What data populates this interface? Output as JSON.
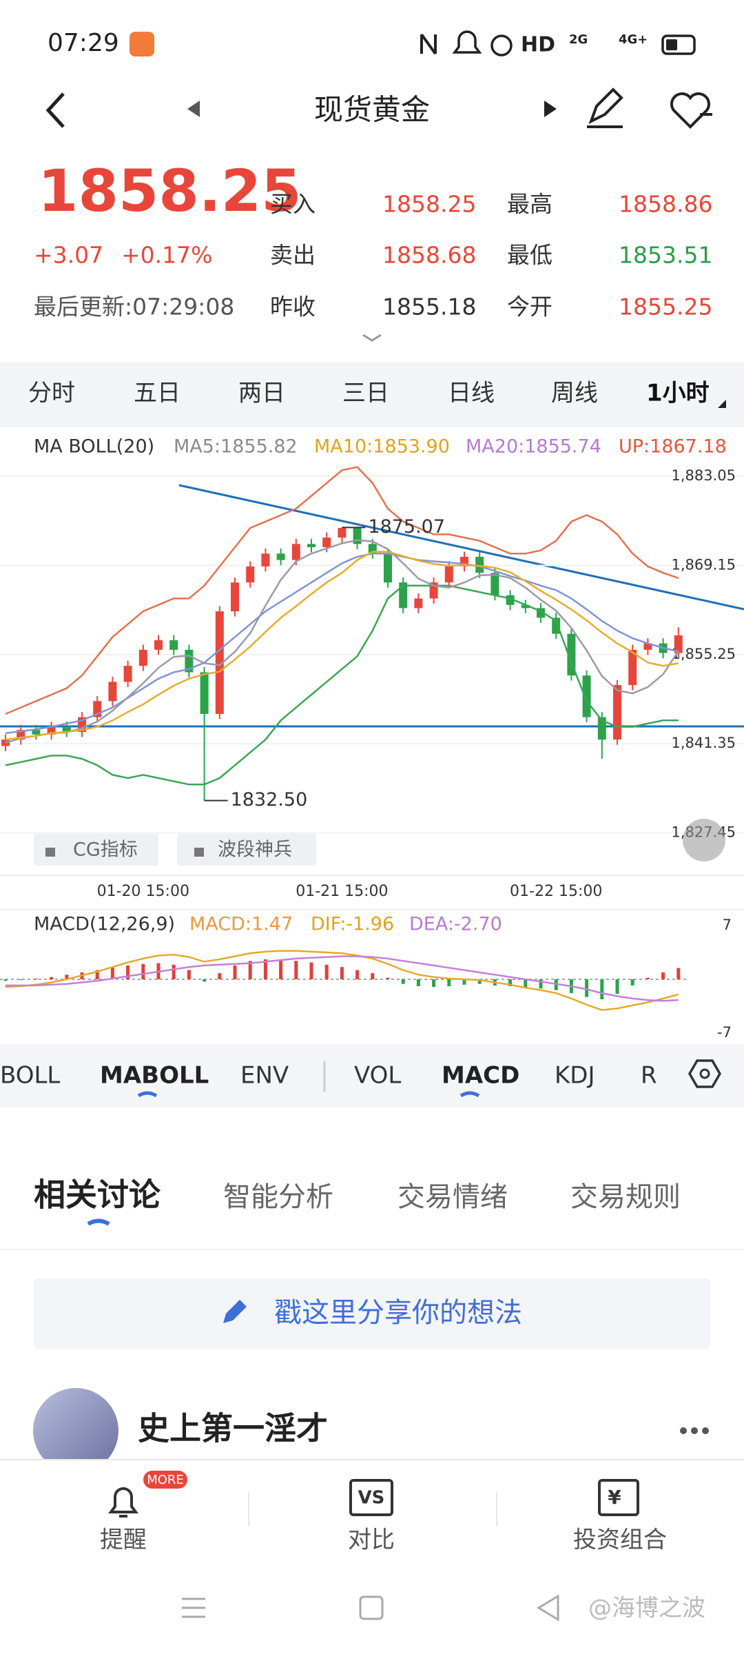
{
  "status_bar": {
    "time": "07:29",
    "network": [
      "HD",
      "2G",
      "4G+"
    ]
  },
  "header": {
    "title": "现货黄金"
  },
  "quote": {
    "price": 1858.25,
    "change": "+3.07",
    "change_pct": "+0.17%",
    "updated": "最后更新:07:29:08",
    "fields": [
      {
        "label": "买入",
        "value": 1858.25
      },
      {
        "label": "卖出",
        "value": 1858.68
      },
      {
        "label": "昨收",
        "value": 1855.18
      },
      {
        "label": "最高",
        "value": 1858.86
      },
      {
        "label": "最低",
        "value": 1853.51
      },
      {
        "label": "今开",
        "value": 1855.25
      }
    ]
  },
  "period_tabs": [
    "分时",
    "五日",
    "两日",
    "三日",
    "日线",
    "周线",
    "1小时"
  ],
  "buttons": [
    "CG指标",
    "波段神兵"
  ],
  "indicator_tabs": [
    "BOLL",
    "MABOLL",
    "ENV",
    "VOL",
    "MACD",
    "KDJ",
    "R"
  ],
  "discussion_tabs": [
    "相关讨论",
    "智能分析",
    "交易情绪",
    "交易规则"
  ],
  "composer": "戳这里分享你的想法",
  "post": {
    "author": "史上第一淫才"
  },
  "bottom_nav": {
    "badge": "MORE",
    "items": [
      "提醒",
      "对比",
      "投资组合"
    ],
    "icon_texts": [
      "VS",
      "¥"
    ]
  },
  "watermark": "@海博之波",
  "chart_data": [
    {
      "type": "candlestick",
      "legend": [
        {
          "text": "MA BOLL(20)",
          "color": "#333333"
        },
        {
          "text": "MA5:1855.82",
          "color": "#8a8a8a"
        },
        {
          "text": "MA10:1853.90",
          "color": "#e0a21e"
        },
        {
          "text": "MA20:1855.74",
          "color": "#b57ad0"
        },
        {
          "text": "UP:1867.18",
          "color": "#e5553e"
        }
      ],
      "categories": [
        null,
        null,
        null,
        null,
        null,
        null,
        null,
        null,
        null,
        "01-20 15:00",
        null,
        null,
        null,
        null,
        null,
        null,
        null,
        null,
        null,
        null,
        null,
        null,
        "01-21 15:00",
        null,
        null,
        null,
        null,
        null,
        null,
        null,
        null,
        null,
        null,
        null,
        null,
        null,
        "01-22 15:00",
        null,
        null,
        null,
        null,
        null,
        null,
        null,
        null
      ],
      "open": [
        1841.0,
        1842.0,
        1843.5,
        1842.8,
        1844.0,
        1843.2,
        1845.5,
        1848.0,
        1851.0,
        1853.5,
        1856.0,
        1857.5,
        1856.0,
        1852.5,
        1846.0,
        1862.0,
        1866.5,
        1869.0,
        1871.0,
        1870.0,
        1872.5,
        1872.0,
        1873.5,
        1875.0,
        1872.5,
        1871.0,
        1866.5,
        1862.5,
        1864.0,
        1866.5,
        1869.0,
        1870.5,
        1868.0,
        1864.5,
        1863.0,
        1862.5,
        1861.0,
        1858.5,
        1852.0,
        1845.5,
        1842.0,
        1850.5,
        1856.0,
        1857.0,
        1855.5
      ],
      "high": [
        1842.8,
        1844.3,
        1844.3,
        1844.8,
        1844.8,
        1846.3,
        1848.8,
        1851.8,
        1854.3,
        1856.8,
        1858.3,
        1858.3,
        1856.8,
        1853.3,
        1862.8,
        1867.3,
        1869.8,
        1871.8,
        1871.8,
        1873.3,
        1873.3,
        1874.3,
        1875.07,
        1874.6,
        1873.3,
        1871.8,
        1867.3,
        1864.8,
        1867.3,
        1869.8,
        1871.3,
        1871.3,
        1868.8,
        1865.3,
        1863.8,
        1863.3,
        1861.8,
        1859.3,
        1852.8,
        1846.3,
        1851.3,
        1856.8,
        1857.8,
        1857.8,
        1859.5
      ],
      "low": [
        1840.2,
        1841.2,
        1842.0,
        1842.0,
        1842.4,
        1842.4,
        1844.7,
        1847.2,
        1850.2,
        1852.7,
        1855.2,
        1855.2,
        1851.7,
        1832.5,
        1845.2,
        1861.2,
        1865.7,
        1868.2,
        1869.2,
        1869.2,
        1871.2,
        1871.2,
        1872.7,
        1871.7,
        1870.2,
        1865.7,
        1861.7,
        1861.7,
        1863.2,
        1865.7,
        1868.2,
        1867.2,
        1863.7,
        1862.2,
        1861.7,
        1860.2,
        1857.7,
        1851.2,
        1844.7,
        1839.0,
        1841.2,
        1849.7,
        1855.2,
        1854.7,
        1854.7
      ],
      "close": [
        1842.0,
        1843.5,
        1842.8,
        1844.0,
        1843.2,
        1845.5,
        1848.0,
        1851.0,
        1853.5,
        1856.0,
        1857.5,
        1856.0,
        1852.5,
        1846.0,
        1862.0,
        1866.5,
        1869.0,
        1871.0,
        1870.0,
        1872.5,
        1872.0,
        1873.5,
        1875.0,
        1872.5,
        1871.0,
        1866.5,
        1862.5,
        1864.0,
        1866.5,
        1869.0,
        1870.5,
        1868.0,
        1864.5,
        1863.0,
        1862.5,
        1861.0,
        1858.5,
        1852.0,
        1845.5,
        1842.0,
        1850.5,
        1856.0,
        1857.0,
        1855.5,
        1858.25
      ],
      "up_color": "#e8463a",
      "down_color": "#2ca24a",
      "series": [
        {
          "color": "#e5704f",
          "values": [
            1846,
            1847,
            1848,
            1849,
            1850,
            1852,
            1855,
            1858,
            1860,
            1862,
            1863,
            1864,
            1864,
            1866,
            1869,
            1872,
            1875,
            1876,
            1877,
            1878,
            1880,
            1882,
            1884,
            1884.5,
            1882,
            1878,
            1876,
            1875,
            1874,
            1874,
            1873.5,
            1873,
            1872,
            1871,
            1871,
            1871.5,
            1873,
            1876,
            1877,
            1876,
            1874,
            1871,
            1869,
            1868,
            1867.18
          ]
        },
        {
          "color": "#7f93d8",
          "values": [
            1843,
            1843.3,
            1843.6,
            1844,
            1844.5,
            1845,
            1846,
            1847,
            1848.5,
            1850,
            1851.5,
            1852.5,
            1853,
            1854,
            1856,
            1858,
            1860,
            1862,
            1863.5,
            1865,
            1866.5,
            1868,
            1869.5,
            1870.5,
            1871,
            1871,
            1870.5,
            1870,
            1869.8,
            1869.6,
            1869.4,
            1869,
            1868.3,
            1867.5,
            1866.8,
            1866,
            1865.3,
            1864,
            1862.3,
            1860.5,
            1859,
            1857.8,
            1857,
            1856.3,
            1855.74
          ]
        },
        {
          "color": "#3aa655",
          "values": [
            1838,
            1838.5,
            1839,
            1839.5,
            1839.5,
            1839,
            1838,
            1836.5,
            1836,
            1836.5,
            1836,
            1835.5,
            1835,
            1835,
            1836,
            1838,
            1840,
            1842,
            1845,
            1847,
            1849,
            1851,
            1853,
            1855,
            1859,
            1864,
            1866,
            1866,
            1866,
            1866,
            1865.5,
            1865,
            1864.5,
            1864,
            1863,
            1862,
            1860.5,
            1854,
            1848,
            1845,
            1844,
            1844,
            1844.5,
            1845,
            1845
          ]
        },
        {
          "color": "#9a9aa8",
          "values": [
            1841.5,
            1842.2,
            1842.6,
            1843,
            1843.1,
            1843.8,
            1844.8,
            1846.5,
            1848.6,
            1850.8,
            1853.2,
            1854.9,
            1855.1,
            1853.9,
            1853.6,
            1855.7,
            1858.6,
            1862.9,
            1866.9,
            1869.8,
            1871,
            1871.8,
            1872.6,
            1873.1,
            1872.9,
            1871.7,
            1869.5,
            1867.1,
            1866,
            1865.7,
            1866.5,
            1867.6,
            1867.7,
            1867.2,
            1865.7,
            1863.8,
            1862.1,
            1859.4,
            1855.9,
            1851.9,
            1849.7,
            1849.2,
            1850.2,
            1852.2,
            1855.82
          ]
        },
        {
          "color": "#e6ac2c",
          "values": [
            1842,
            1842.3,
            1842.6,
            1843,
            1843.2,
            1843.5,
            1844,
            1845,
            1846.3,
            1847.5,
            1849,
            1850.4,
            1851.5,
            1852.2,
            1852.6,
            1854.5,
            1856.5,
            1858.8,
            1861,
            1862.8,
            1864.7,
            1866.5,
            1868,
            1870,
            1871.3,
            1871.3,
            1870.6,
            1869.9,
            1869.4,
            1869.1,
            1869.2,
            1869.1,
            1868.8,
            1868.1,
            1866.7,
            1865.2,
            1863.8,
            1862.3,
            1860.6,
            1858.7,
            1857,
            1855.6,
            1854,
            1853.5,
            1853.9
          ]
        }
      ],
      "ylim": [
        1823,
        1885
      ],
      "yticks": [
        {
          "value": 1883.05,
          "label": "1,883.05"
        },
        {
          "value": 1869.15,
          "label": "1,869.15"
        },
        {
          "value": 1855.25,
          "label": "1,855.25"
        },
        {
          "value": 1841.35,
          "label": "1,841.35"
        },
        {
          "value": 1827.45,
          "label": "1,827.45"
        }
      ],
      "grid": true,
      "high_mark": 1875.07,
      "low_mark": {
        "value": 1832.5,
        "label": "1832.50"
      }
    },
    {
      "type": "bar",
      "legend": [
        {
          "text": "MACD(12,26,9)",
          "color": "#333333"
        },
        {
          "text": "MACD:1.47",
          "color": "#e69a3c"
        },
        {
          "text": "DIF:-1.96",
          "color": "#e0a21e"
        },
        {
          "text": "DEA:-2.70",
          "color": "#b57ad0"
        }
      ],
      "values": [
        -0.2,
        -0.1,
        0.1,
        0.3,
        0.6,
        0.9,
        1.2,
        1.5,
        1.8,
        2,
        2.1,
        1.9,
        1.2,
        -0.3,
        0.8,
        1.8,
        2.4,
        2.6,
        2.5,
        2.4,
        2.2,
        1.9,
        1.6,
        1.2,
        0.8,
        0.2,
        -0.6,
        -0.9,
        -1,
        -0.9,
        -0.7,
        -0.6,
        -0.8,
        -0.9,
        -1.1,
        -1.2,
        -1.4,
        -1.8,
        -2.3,
        -2.6,
        -1.9,
        -0.8,
        0.2,
        0.9,
        1.47
      ],
      "up_color": "#e0413a",
      "down_color": "#2ca24a",
      "series": [
        {
          "color": "#e6a92a",
          "values": [
            -1,
            -0.9,
            -0.7,
            -0.4,
            0,
            0.5,
            1,
            1.6,
            2.2,
            2.7,
            3.1,
            3.2,
            2.9,
            2.3,
            2.6,
            3,
            3.4,
            3.6,
            3.7,
            3.7,
            3.6,
            3.5,
            3.4,
            3.1,
            2.7,
            2,
            1.2,
            0.6,
            0.3,
            0.1,
            0,
            -0.1,
            -0.4,
            -0.7,
            -1.1,
            -1.4,
            -1.8,
            -2.5,
            -3.3,
            -4,
            -3.8,
            -3.4,
            -3,
            -2.5,
            -1.96
          ]
        },
        {
          "color": "#c47fd6",
          "values": [
            -0.8,
            -0.8,
            -0.8,
            -0.7,
            -0.6,
            -0.4,
            -0.2,
            0.1,
            0.4,
            0.7,
            1.0,
            1.3,
            1.6,
            1.8,
            1.9,
            2.0,
            2.1,
            2.3,
            2.5,
            2.7,
            2.8,
            2.9,
            3.0,
            3.0,
            2.9,
            2.7,
            2.4,
            2.1,
            1.8,
            1.5,
            1.2,
            0.9,
            0.6,
            0.3,
            0,
            -0.3,
            -0.6,
            -0.9,
            -1.3,
            -1.8,
            -2.2,
            -2.5,
            -2.7,
            -2.8,
            -2.7
          ]
        }
      ],
      "ylim": [
        -7,
        7
      ],
      "yticks": [
        7,
        -7
      ]
    }
  ]
}
